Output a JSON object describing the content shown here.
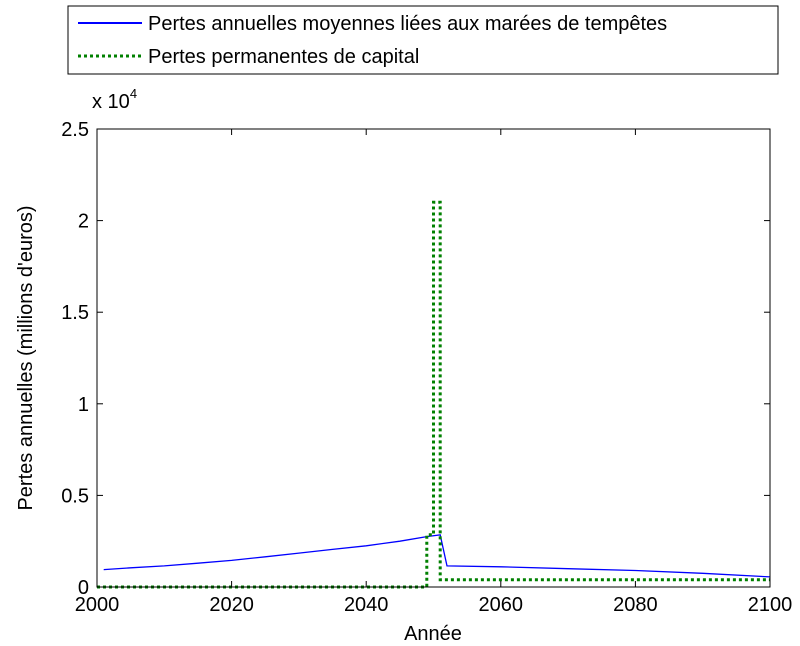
{
  "chart_data": {
    "type": "line",
    "title": "",
    "xlabel": "Année",
    "ylabel": "Pertes annuelles (millions d'euros)",
    "y_exponent_label": "x 10",
    "y_exponent_power": "4",
    "xlim": [
      2000,
      2100
    ],
    "ylim": [
      0,
      25000
    ],
    "grid": false,
    "legend_position": "top",
    "x_ticks": [
      2000,
      2020,
      2040,
      2060,
      2080,
      2100
    ],
    "x_tick_labels": [
      "2000",
      "2020",
      "2040",
      "2060",
      "2080",
      "2100"
    ],
    "y_ticks": [
      0,
      5000,
      10000,
      15000,
      20000,
      25000
    ],
    "y_tick_labels": [
      "0",
      "0.5",
      "1",
      "1.5",
      "2",
      "2.5"
    ],
    "series": [
      {
        "name": "Pertes annuelles moyennes liées aux marées de tempêtes",
        "color": "#0000ff",
        "style": "solid",
        "x": [
          2001,
          2005,
          2010,
          2015,
          2020,
          2025,
          2030,
          2035,
          2040,
          2045,
          2049,
          2051,
          2052,
          2060,
          2070,
          2080,
          2090,
          2100
        ],
        "y": [
          950,
          1050,
          1150,
          1300,
          1450,
          1650,
          1850,
          2050,
          2250,
          2500,
          2750,
          2850,
          1150,
          1100,
          1000,
          900,
          750,
          550
        ]
      },
      {
        "name": "Pertes permanentes de capital",
        "color": "#008000",
        "style": "dotted",
        "x": [
          2000,
          2049,
          2049,
          2050,
          2050,
          2051,
          2051,
          2052,
          2052,
          2100
        ],
        "y": [
          0,
          0,
          2850,
          2850,
          21000,
          21000,
          400,
          400,
          400,
          400
        ]
      }
    ]
  }
}
